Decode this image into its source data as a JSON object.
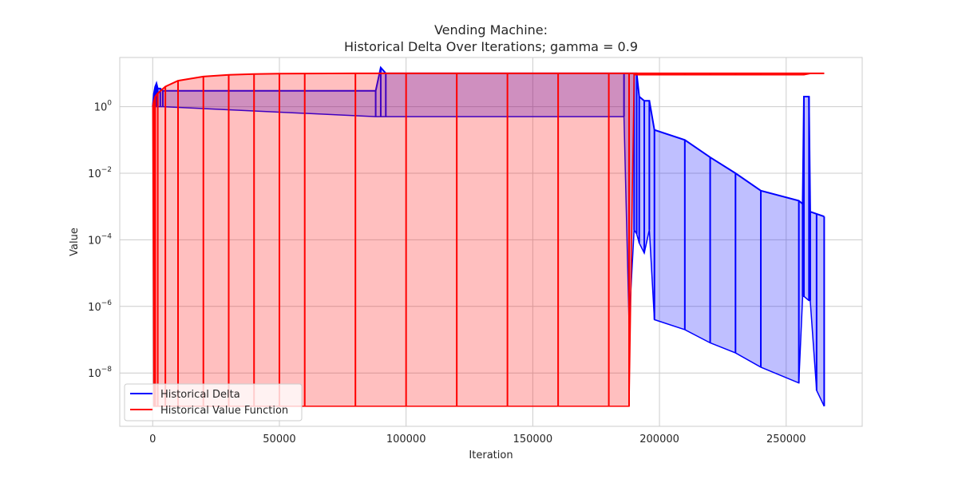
{
  "chart_data": {
    "type": "line",
    "title_line1": "Vending Machine:",
    "title_line2": "Historical Delta Over Iterations; gamma = 0.9",
    "xlabel": "Iteration",
    "ylabel": "Value",
    "yscale": "log",
    "xlim": [
      -13000,
      280000
    ],
    "ylim": [
      2.5e-10,
      30
    ],
    "grid": true,
    "legend_position": "lower-left",
    "x_ticks": [
      {
        "value": 0,
        "label": "0"
      },
      {
        "value": 50000,
        "label": "50000"
      },
      {
        "value": 100000,
        "label": "100000"
      },
      {
        "value": 150000,
        "label": "150000"
      },
      {
        "value": 200000,
        "label": "200000"
      },
      {
        "value": 250000,
        "label": "250000"
      }
    ],
    "y_ticks": [
      {
        "value": 1,
        "base": "10",
        "exp": "0"
      },
      {
        "value": 0.01,
        "base": "10",
        "exp": "−2"
      },
      {
        "value": 0.0001,
        "base": "10",
        "exp": "−4"
      },
      {
        "value": 1e-06,
        "base": "10",
        "exp": "−6"
      },
      {
        "value": 1e-08,
        "base": "10",
        "exp": "−8"
      }
    ],
    "series": [
      {
        "name": "Historical Delta",
        "color": "#0000ff",
        "x": [
          0,
          500,
          1000,
          1500,
          2000,
          3000,
          4000,
          88000,
          90000,
          92000,
          186000,
          188000,
          190000,
          191000,
          192000,
          194000,
          196000,
          198000,
          210000,
          220000,
          230000,
          240000,
          255000,
          256500,
          257000,
          259000,
          259500,
          262000,
          265000
        ],
        "top": [
          1,
          2.5,
          4,
          5,
          3.5,
          3.5,
          3,
          3,
          15,
          10,
          10,
          10,
          10,
          10,
          2,
          1.5,
          1.5,
          0.2,
          0.1,
          0.03,
          0.01,
          0.003,
          0.0015,
          0.0012,
          2,
          2,
          0.0007,
          0.0006,
          0.0005
        ],
        "bottom": [
          1,
          1,
          1,
          1,
          1,
          1,
          1,
          0.5,
          0.5,
          0.5,
          0.5,
          3e-07,
          0.0002,
          0.00015,
          8e-05,
          4e-05,
          0.0002,
          4e-07,
          2e-07,
          8e-08,
          4e-08,
          1.5e-08,
          5e-09,
          2e-06,
          2e-06,
          1.5e-06,
          1.5e-06,
          3e-09,
          1e-09
        ]
      },
      {
        "name": "Historical Value Function",
        "color": "#ff0000",
        "x": [
          0,
          500,
          1000,
          2000,
          5000,
          10000,
          20000,
          30000,
          40000,
          50000,
          60000,
          80000,
          100000,
          120000,
          140000,
          160000,
          180000,
          188000,
          190000,
          200000,
          210000,
          220000,
          230000,
          240000,
          250000,
          257000,
          260000,
          265000
        ],
        "top": [
          1,
          1.5,
          2,
          2.5,
          4,
          6,
          8,
          9,
          9.5,
          9.8,
          9.9,
          10,
          10,
          10,
          10,
          10,
          10,
          10,
          10,
          10,
          10,
          10,
          10,
          10,
          10,
          10,
          10,
          10
        ],
        "bottom": [
          1,
          1e-09,
          1e-09,
          1e-09,
          1e-09,
          1e-09,
          1e-09,
          1e-09,
          1e-09,
          1e-09,
          1e-09,
          1e-09,
          1e-09,
          1e-09,
          1e-09,
          1e-09,
          1e-09,
          1e-09,
          9,
          9,
          9,
          9,
          9,
          9,
          9,
          9,
          10,
          10
        ]
      }
    ]
  }
}
